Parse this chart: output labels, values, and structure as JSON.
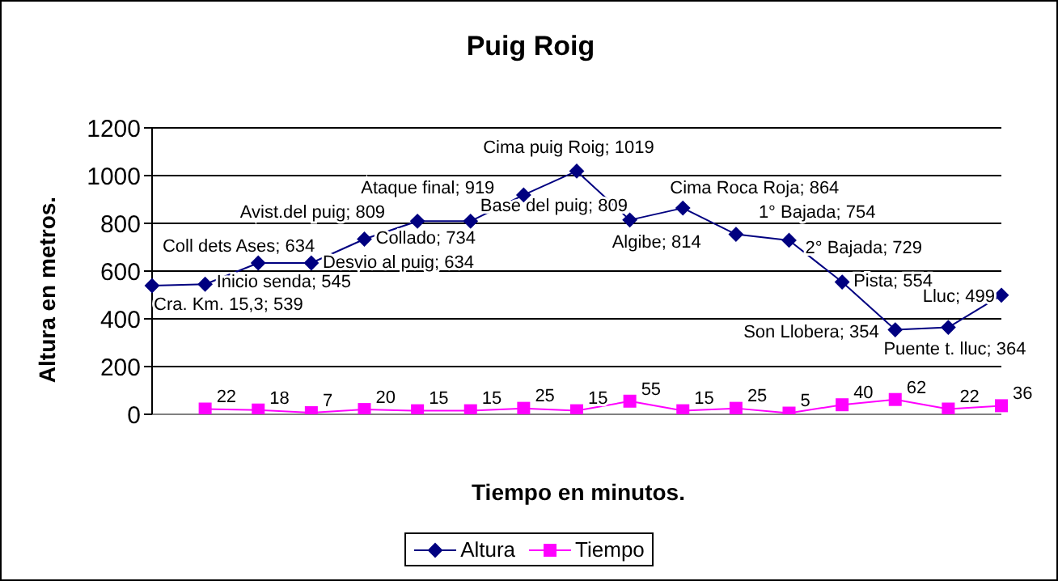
{
  "chart_data": {
    "type": "line",
    "title": "Puig Roig",
    "xlabel": "Tiempo en minutos.",
    "ylabel": "Altura en metros.",
    "categories": [
      null,
      null,
      null,
      null,
      null,
      null,
      null,
      null,
      null,
      null,
      null,
      null,
      null,
      null,
      null,
      null,
      null
    ],
    "ylim": [
      0,
      1200
    ],
    "yticks": [
      0,
      200,
      400,
      600,
      800,
      1000,
      1200
    ],
    "grid": "y",
    "legend": "bottom",
    "series": [
      {
        "name": "Altura",
        "color": "#000080",
        "marker": "diamond",
        "values": [
          539,
          545,
          634,
          634,
          734,
          809,
          809,
          919,
          1019,
          814,
          864,
          754,
          729,
          554,
          354,
          364,
          499
        ],
        "value_labels": [
          "Cra. Km. 15,3; 539",
          "Inicio senda; 545",
          "Coll dets Ases; 634",
          "Desvio al puig; 634",
          "Collado; 734",
          "Avist.del puig; 809",
          "Base del puig; 809",
          "Ataque final; 919",
          "Cima puig Roig; 1019",
          "Algibe; 814",
          "Cima Roca Roja; 864",
          "1° Bajada; 754",
          "2° Bajada; 729",
          "Pista; 554",
          "Son Llobera; 354",
          "Puente t. lluc; 364",
          "Lluc; 499"
        ]
      },
      {
        "name": "Tiempo",
        "color": "#ff00ff",
        "marker": "square",
        "values": [
          null,
          22,
          18,
          7,
          20,
          15,
          15,
          25,
          15,
          55,
          15,
          25,
          5,
          40,
          62,
          22,
          36
        ],
        "value_labels": [
          null,
          "22",
          "18",
          "7",
          "20",
          "15",
          "15",
          "25",
          "15",
          "55",
          "15",
          "25",
          "5",
          "40",
          "62",
          "22",
          "36"
        ]
      }
    ]
  }
}
